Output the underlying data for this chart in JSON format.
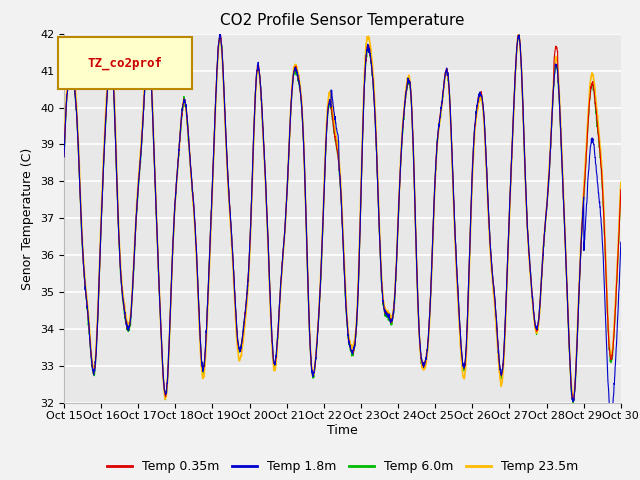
{
  "title": "CO2 Profile Sensor Temperature",
  "ylabel": "Senor Temperature (C)",
  "xlabel": "Time",
  "ylim": [
    32.0,
    42.0
  ],
  "yticks": [
    32.0,
    33.0,
    34.0,
    35.0,
    36.0,
    37.0,
    38.0,
    39.0,
    40.0,
    41.0,
    42.0
  ],
  "xtick_labels": [
    "Oct 15",
    "Oct 16",
    "Oct 17",
    "Oct 18",
    "Oct 19",
    "Oct 20",
    "Oct 21",
    "Oct 22",
    "Oct 23",
    "Oct 24",
    "Oct 25",
    "Oct 26",
    "Oct 27",
    "Oct 28",
    "Oct 29",
    "Oct 30"
  ],
  "legend_label": "TZ_co2prof",
  "series_labels": [
    "Temp 0.35m",
    "Temp 1.8m",
    "Temp 6.0m",
    "Temp 23.5m"
  ],
  "series_colors": [
    "#dd0000",
    "#0000cc",
    "#00bb00",
    "#ffbb00"
  ],
  "background_color": "#e8e8e8",
  "fig_background": "#f2f2f2",
  "title_fontsize": 11,
  "axis_fontsize": 9,
  "tick_fontsize": 8
}
